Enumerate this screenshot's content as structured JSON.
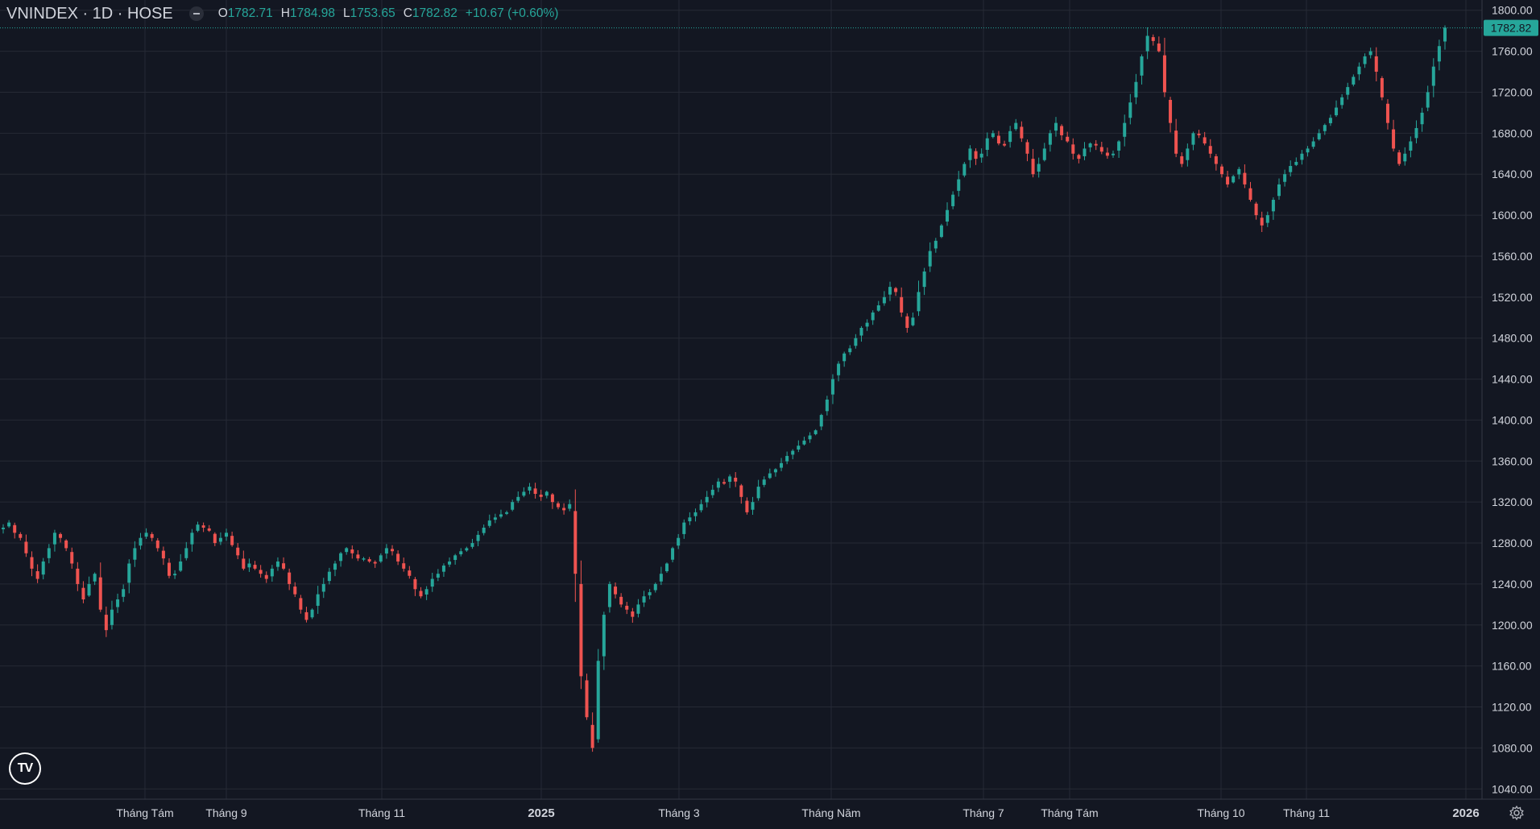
{
  "legend": {
    "symbol": "VNINDEX · 1D · HOSE",
    "open_label": "O",
    "open": "1782.71",
    "high_label": "H",
    "high": "1784.98",
    "low_label": "L",
    "low": "1753.65",
    "close_label": "C",
    "close": "1782.82",
    "change": "+10.67 (+0.60%)"
  },
  "colors": {
    "background": "#131722",
    "grid": "#262a35",
    "up": "#26a69a",
    "down": "#ef5350",
    "text": "#d1d4dc",
    "last_price_bg": "#26a69a"
  },
  "icons": {
    "logo": "tradingview-logo",
    "settings": "gear-icon"
  },
  "last_price_label": "1782.82",
  "chart_data": {
    "type": "candlestick",
    "ylim": [
      1030,
      1810
    ],
    "y_ticks": [
      1040,
      1080,
      1120,
      1160,
      1200,
      1240,
      1280,
      1320,
      1360,
      1400,
      1440,
      1480,
      1520,
      1560,
      1600,
      1640,
      1680,
      1720,
      1760,
      1800
    ],
    "y_tick_labels": [
      "1040.00",
      "1080.00",
      "1120.00",
      "1160.00",
      "1200.00",
      "1240.00",
      "1280.00",
      "1320.00",
      "1360.00",
      "1400.00",
      "1440.00",
      "1480.00",
      "1520.00",
      "1560.00",
      "1600.00",
      "1640.00",
      "1680.00",
      "1720.00",
      "1760.00",
      "1800.00"
    ],
    "x_ticks": [
      {
        "label": "Tháng Tám",
        "bold": false
      },
      {
        "label": "Tháng 9",
        "bold": false
      },
      {
        "label": "Tháng 11",
        "bold": false
      },
      {
        "label": "2025",
        "bold": true
      },
      {
        "label": "Tháng 3",
        "bold": false
      },
      {
        "label": "Tháng Năm",
        "bold": false
      },
      {
        "label": "Tháng 7",
        "bold": false
      },
      {
        "label": "Tháng Tám",
        "bold": false
      },
      {
        "label": "Tháng 10",
        "bold": false
      },
      {
        "label": "Tháng 11",
        "bold": false
      },
      {
        "label": "2026",
        "bold": true
      }
    ],
    "grid": true,
    "last_price": 1782.82,
    "close_path": [
      1295,
      1300,
      1290,
      1285,
      1270,
      1255,
      1245,
      1262,
      1275,
      1290,
      1285,
      1275,
      1260,
      1240,
      1225,
      1240,
      1250,
      1215,
      1195,
      1215,
      1225,
      1235,
      1260,
      1275,
      1285,
      1290,
      1285,
      1275,
      1265,
      1248,
      1250,
      1262,
      1275,
      1290,
      1298,
      1295,
      1292,
      1280,
      1285,
      1290,
      1278,
      1268,
      1255,
      1260,
      1255,
      1250,
      1245,
      1255,
      1262,
      1255,
      1240,
      1230,
      1215,
      1205,
      1215,
      1230,
      1240,
      1252,
      1260,
      1270,
      1275,
      1270,
      1265,
      1265,
      1262,
      1260,
      1268,
      1275,
      1272,
      1262,
      1255,
      1248,
      1235,
      1228,
      1235,
      1245,
      1250,
      1258,
      1262,
      1268,
      1272,
      1275,
      1280,
      1288,
      1295,
      1302,
      1305,
      1308,
      1310,
      1320,
      1325,
      1330,
      1335,
      1328,
      1325,
      1330,
      1320,
      1315,
      1312,
      1318,
      1250,
      1150,
      1110,
      1080,
      1165,
      1210,
      1240,
      1230,
      1220,
      1215,
      1208,
      1220,
      1228,
      1232,
      1240,
      1250,
      1260,
      1275,
      1285,
      1300,
      1305,
      1310,
      1318,
      1325,
      1332,
      1340,
      1338,
      1345,
      1340,
      1325,
      1310,
      1320,
      1335,
      1342,
      1348,
      1352,
      1358,
      1365,
      1370,
      1375,
      1380,
      1385,
      1390,
      1405,
      1420,
      1440,
      1455,
      1465,
      1470,
      1480,
      1490,
      1495,
      1505,
      1512,
      1520,
      1530,
      1525,
      1505,
      1490,
      1500,
      1525,
      1545,
      1565,
      1575,
      1590,
      1605,
      1620,
      1635,
      1650,
      1665,
      1655,
      1660,
      1675,
      1680,
      1670,
      1668,
      1682,
      1690,
      1675,
      1660,
      1640,
      1650,
      1665,
      1680,
      1690,
      1678,
      1672,
      1660,
      1655,
      1665,
      1670,
      1668,
      1662,
      1658,
      1660,
      1672,
      1690,
      1710,
      1730,
      1755,
      1775,
      1770,
      1760,
      1720,
      1690,
      1660,
      1650,
      1665,
      1680,
      1678,
      1670,
      1660,
      1650,
      1640,
      1630,
      1638,
      1645,
      1630,
      1615,
      1600,
      1590,
      1600,
      1615,
      1630,
      1640,
      1648,
      1652,
      1660,
      1665,
      1672,
      1680,
      1688,
      1695,
      1705,
      1715,
      1725,
      1735,
      1745,
      1755,
      1760,
      1740,
      1715,
      1690,
      1665,
      1650,
      1660,
      1672,
      1685,
      1700,
      1720,
      1745,
      1765,
      1783
    ]
  }
}
